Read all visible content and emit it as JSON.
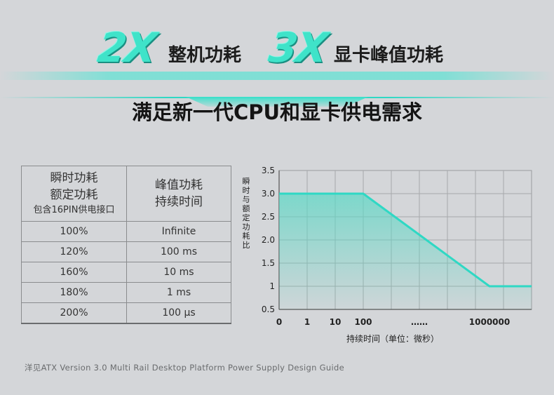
{
  "hero": {
    "multiplier_1": "2X",
    "label_1": "整机功耗",
    "multiplier_2": "3X",
    "label_2": "显卡峰值功耗"
  },
  "subtitle": "满足新一代CPU和显卡供电需求",
  "table": {
    "headers": {
      "col1_line1": "瞬时功耗",
      "col1_line2": "额定功耗",
      "col1_line3": "包含16PIN供电接口",
      "col2_line1": "峰值功耗",
      "col2_line2": "持续时间"
    },
    "rows": [
      {
        "ratio": "100%",
        "duration": "Infinite"
      },
      {
        "ratio": "120%",
        "duration": "100 ms"
      },
      {
        "ratio": "160%",
        "duration": "10 ms"
      },
      {
        "ratio": "180%",
        "duration": "1 ms"
      },
      {
        "ratio": "200%",
        "duration": "100 μs"
      }
    ]
  },
  "chart_data": {
    "type": "line",
    "xlabel": "持续时间（单位：微秒）",
    "ylabel": "瞬时与额定功耗比",
    "x_tick_labels": [
      "0",
      "1",
      "10",
      "100",
      "……",
      "1000000"
    ],
    "y_tick_labels": [
      "0.5",
      "1",
      "1.5",
      "2.0",
      "2.5",
      "3.0",
      "3.5"
    ],
    "ylim": [
      0.5,
      3.5
    ],
    "grid": true,
    "x": [
      "0",
      "1",
      "10",
      "100",
      "1000000"
    ],
    "y": [
      3.0,
      3.0,
      3.0,
      3.0,
      1.0
    ],
    "line_color": "#2fd8c4",
    "fill_color": "#5fd8c6"
  },
  "footer": "洋见ATX Version 3.0 Multi Rail Desktop Platform Power Supply Design Guide",
  "colors": {
    "background": "#d4d6d9",
    "accent": "#3fe3c9"
  }
}
